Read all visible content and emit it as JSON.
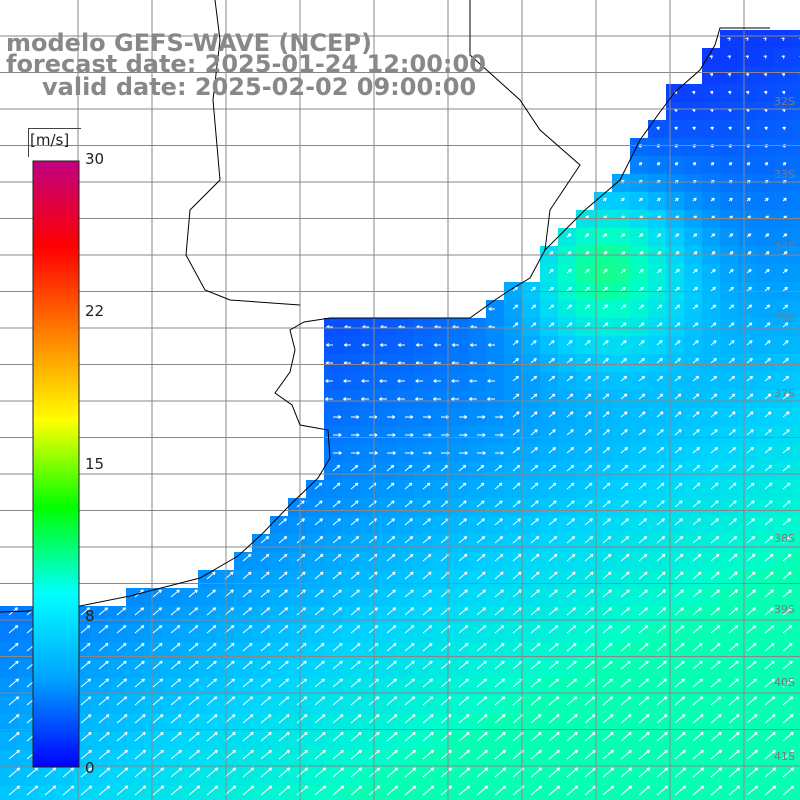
{
  "title": {
    "line1": "modelo GEFS-WAVE (NCEP)",
    "line2": "forecast date: 2025-01-24 12:00:00",
    "line3": "valid date: 2025-02-02 09:00:00"
  },
  "colorbar": {
    "units": "[m/s]",
    "ticks": [
      "30",
      "22",
      "15",
      "8",
      "0"
    ],
    "colors": [
      "#0000ff",
      "#00a0ff",
      "#00ffff",
      "#00ff00",
      "#ffff00",
      "#ff8000",
      "#ff0000",
      "#c00080"
    ]
  },
  "map": {
    "land_color": "#ffffff",
    "grid_color": "#888888",
    "coast_color": "#000000",
    "arrow_color": "#ffffff",
    "lat_labels": [
      "32S",
      "33S",
      "34S",
      "35S",
      "37S",
      "38S",
      "39S",
      "40S",
      "41S"
    ]
  },
  "chart_data": {
    "type": "heatmap",
    "variable": "wind speed",
    "units": "m/s",
    "scale_range": [
      0,
      30
    ]
  }
}
